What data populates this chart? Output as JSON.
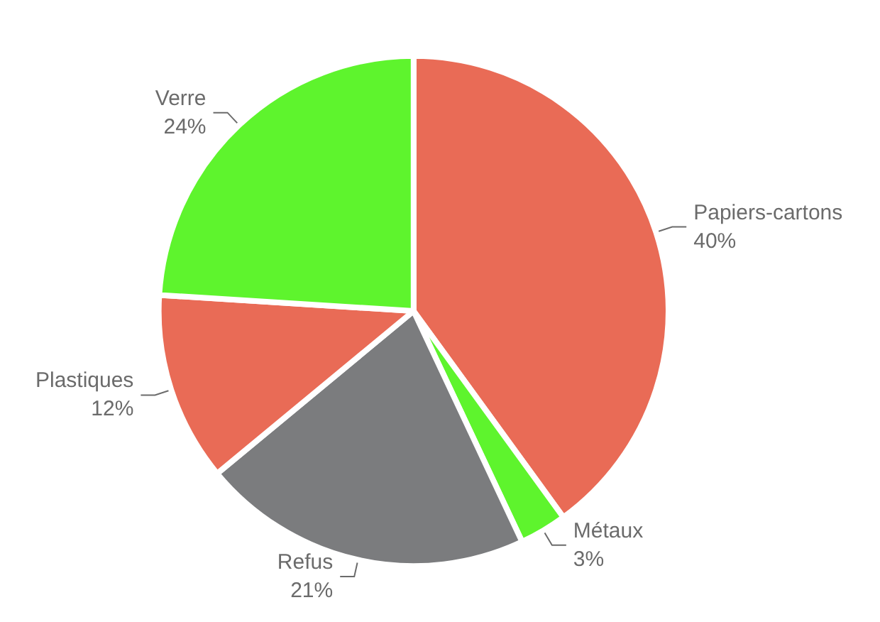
{
  "chart_data": {
    "type": "pie",
    "categories": [
      "Papiers-cartons",
      "Métaux",
      "Refus",
      "Plastiques",
      "Verre"
    ],
    "values": [
      40,
      3,
      21,
      12,
      24
    ],
    "value_labels": [
      "40%",
      "3%",
      "21%",
      "12%",
      "24%"
    ],
    "colors": [
      "#e96b56",
      "#5ef42d",
      "#7b7c7e",
      "#e96b56",
      "#5ef42d"
    ],
    "legend": false
  }
}
